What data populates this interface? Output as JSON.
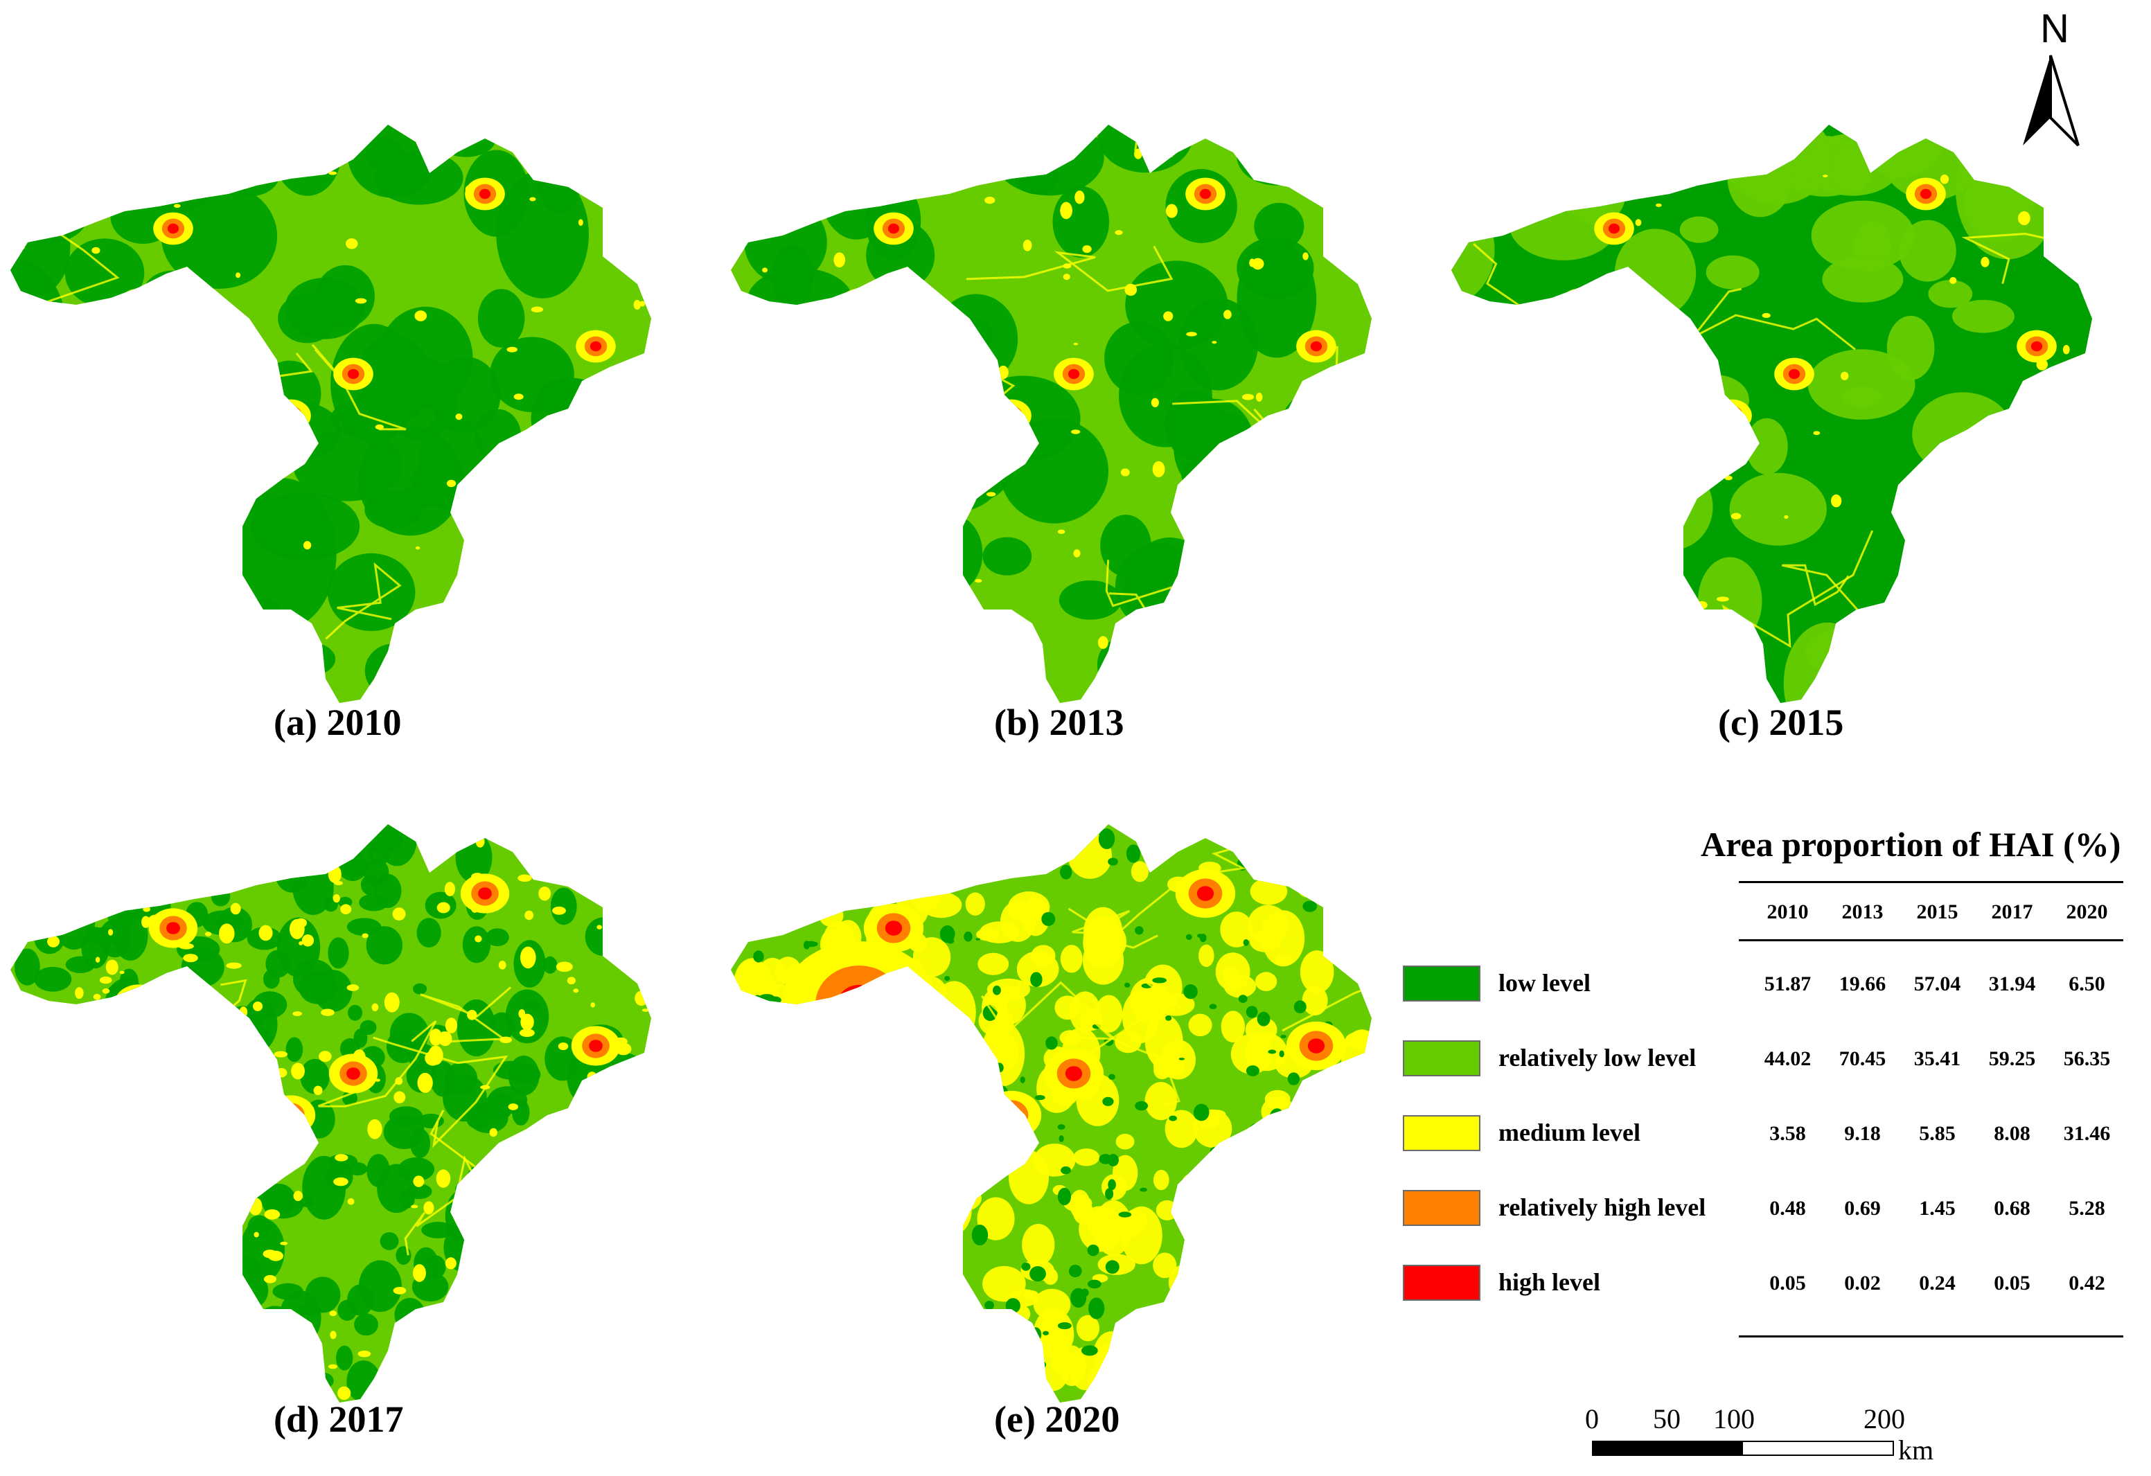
{
  "north_label": "N",
  "panels": [
    {
      "caption": "(a) 2010",
      "colors": {
        "base": "#66cc00",
        "patch": "#00a000",
        "spot": "#ffff00",
        "hot": "#ff8000",
        "core": "#ff0000"
      }
    },
    {
      "caption": "(b) 2013",
      "colors": {
        "base": "#66cc00",
        "patch": "#00a000",
        "spot": "#ffff00",
        "hot": "#ff8000",
        "core": "#ff0000"
      }
    },
    {
      "caption": "(c) 2015",
      "colors": {
        "base": "#00a000",
        "patch": "#66cc00",
        "spot": "#ffff00",
        "hot": "#ff8000",
        "core": "#ff0000"
      }
    },
    {
      "caption": "(d) 2017",
      "colors": {
        "base": "#66cc00",
        "patch": "#00a000",
        "spot": "#ffff00",
        "hot": "#ff8000",
        "core": "#ff0000"
      }
    },
    {
      "caption": "(e) 2020",
      "colors": {
        "base": "#66cc00",
        "patch": "#ffff00",
        "spot": "#00a000",
        "hot": "#ff8000",
        "core": "#ff0000"
      }
    }
  ],
  "legend": [
    {
      "label": "low level",
      "color": "#00a000"
    },
    {
      "label": "relatively low level",
      "color": "#66cc00"
    },
    {
      "label": "medium level",
      "color": "#ffff00"
    },
    {
      "label": "relatively high level",
      "color": "#ff8000"
    },
    {
      "label": "high level",
      "color": "#ff0000"
    }
  ],
  "table": {
    "title": "Area proportion of HAI (%)",
    "years": [
      "2010",
      "2013",
      "2015",
      "2017",
      "2020"
    ],
    "rows": [
      [
        "51.87",
        "19.66",
        "57.04",
        "31.94",
        "6.50"
      ],
      [
        "44.02",
        "70.45",
        "35.41",
        "59.25",
        "56.35"
      ],
      [
        "3.58",
        "9.18",
        "5.85",
        "8.08",
        "31.46"
      ],
      [
        "0.48",
        "0.69",
        "1.45",
        "0.68",
        "5.28"
      ],
      [
        "0.05",
        "0.02",
        "0.24",
        "0.05",
        "0.42"
      ]
    ]
  },
  "scale": {
    "ticks": [
      "0",
      "50",
      "100",
      "200"
    ],
    "unit": "km"
  }
}
